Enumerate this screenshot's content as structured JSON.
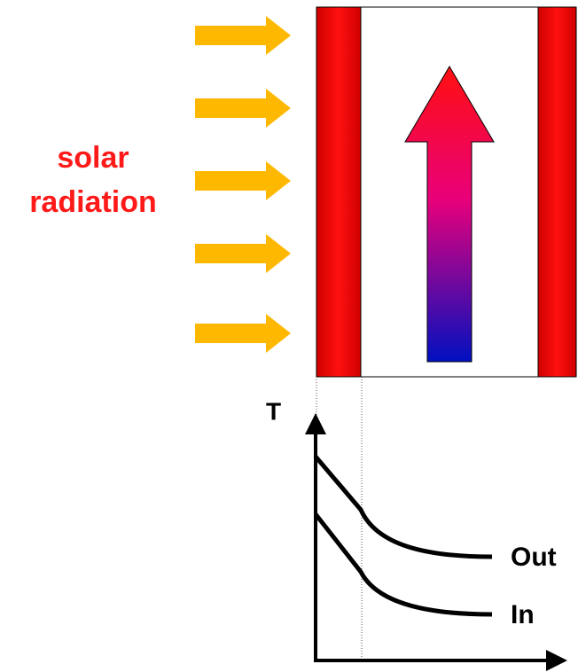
{
  "radiation_label": [
    "solar",
    "radiation"
  ],
  "axis_label": "T",
  "curves": [
    {
      "label": "Out"
    },
    {
      "label": "In"
    }
  ]
}
